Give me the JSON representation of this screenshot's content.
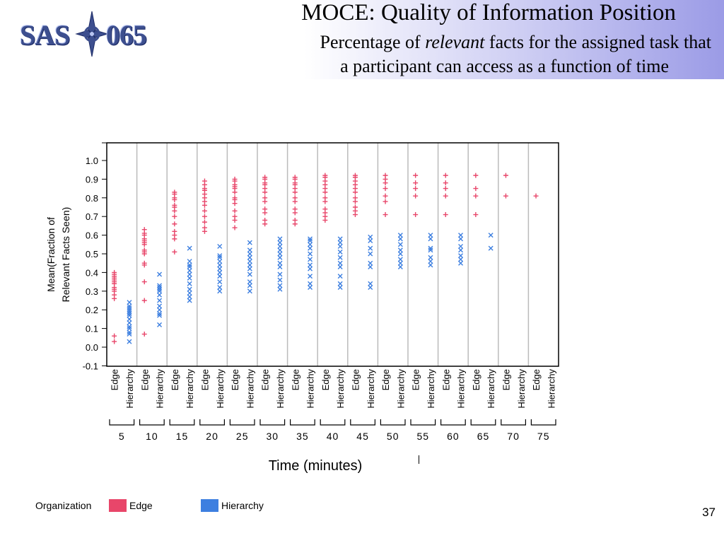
{
  "slide": {
    "logo_text_left": "SAS",
    "logo_text_right": "065",
    "title": "MOCE: Quality of Information Position",
    "subtitle_pre": "Percentage of ",
    "subtitle_em": "relevant",
    "subtitle_post": " facts for the assigned task that",
    "subtitle_line2": "a participant can access as a function of time",
    "page_number": "37"
  },
  "legend": {
    "title": "Organization",
    "items": [
      {
        "label": "Edge",
        "color": "#e8466a"
      },
      {
        "label": "Hierarchy",
        "color": "#3d7fe0"
      }
    ]
  },
  "chart_data": {
    "type": "scatter",
    "xlabel": "Time (minutes)",
    "ylabel_line1": "Mean(Fraction of",
    "ylabel_line2": "Relevant Facts Seen)",
    "ylim": [
      -0.1,
      1.1
    ],
    "yticks": [
      -0.1,
      0.0,
      0.1,
      0.2,
      0.3,
      0.4,
      0.5,
      0.6,
      0.7,
      0.8,
      0.9,
      1.0
    ],
    "ytick_labels": [
      "-0.1",
      "0.0",
      "0.1",
      "0.2",
      "0.3",
      "0.4",
      "0.5",
      "0.6",
      "0.7",
      "0.8",
      "0.9",
      "1.0"
    ],
    "groups": [
      "5",
      "10",
      "15",
      "20",
      "25",
      "30",
      "35",
      "40",
      "45",
      "50",
      "55",
      "60",
      "65",
      "70",
      "75"
    ],
    "subgroups": [
      "Edge",
      "Hierarchy"
    ],
    "grid": true,
    "series": [
      {
        "name": "Edge",
        "marker": "+",
        "color": "#e8466a",
        "values": [
          [
            0.03,
            0.06,
            0.26,
            0.28,
            0.3,
            0.31,
            0.32,
            0.34,
            0.35,
            0.36,
            0.37,
            0.38,
            0.39,
            0.4
          ],
          [
            0.07,
            0.25,
            0.35,
            0.44,
            0.45,
            0.5,
            0.51,
            0.52,
            0.55,
            0.56,
            0.57,
            0.58,
            0.6,
            0.61,
            0.63
          ],
          [
            0.51,
            0.58,
            0.6,
            0.62,
            0.66,
            0.7,
            0.73,
            0.75,
            0.76,
            0.79,
            0.8,
            0.82,
            0.83
          ],
          [
            0.62,
            0.64,
            0.67,
            0.7,
            0.73,
            0.76,
            0.78,
            0.8,
            0.82,
            0.84,
            0.85,
            0.87,
            0.89
          ],
          [
            0.64,
            0.68,
            0.7,
            0.73,
            0.77,
            0.79,
            0.8,
            0.83,
            0.85,
            0.86,
            0.87,
            0.89,
            0.9
          ],
          [
            0.66,
            0.68,
            0.72,
            0.74,
            0.78,
            0.8,
            0.83,
            0.85,
            0.87,
            0.88,
            0.9,
            0.91
          ],
          [
            0.66,
            0.68,
            0.72,
            0.74,
            0.78,
            0.8,
            0.83,
            0.85,
            0.87,
            0.88,
            0.9,
            0.91
          ],
          [
            0.68,
            0.7,
            0.72,
            0.74,
            0.78,
            0.8,
            0.83,
            0.85,
            0.87,
            0.89,
            0.91,
            0.92
          ],
          [
            0.71,
            0.73,
            0.75,
            0.78,
            0.8,
            0.83,
            0.85,
            0.87,
            0.89,
            0.91,
            0.92
          ],
          [
            0.71,
            0.78,
            0.81,
            0.85,
            0.88,
            0.9,
            0.92
          ],
          [
            0.71,
            0.81,
            0.85,
            0.88,
            0.92
          ],
          [
            0.71,
            0.81,
            0.85,
            0.88,
            0.92
          ],
          [
            0.71,
            0.81,
            0.85,
            0.92
          ],
          [
            0.81,
            0.92
          ],
          [
            0.81
          ]
        ]
      },
      {
        "name": "Hierarchy",
        "marker": "x",
        "color": "#3d7fe0",
        "values": [
          [
            0.03,
            0.07,
            0.08,
            0.1,
            0.11,
            0.13,
            0.15,
            0.17,
            0.18,
            0.19,
            0.2,
            0.21,
            0.22,
            0.24
          ],
          [
            0.12,
            0.17,
            0.18,
            0.2,
            0.22,
            0.25,
            0.28,
            0.3,
            0.31,
            0.32,
            0.33,
            0.39
          ],
          [
            0.25,
            0.27,
            0.29,
            0.31,
            0.34,
            0.37,
            0.39,
            0.41,
            0.43,
            0.44,
            0.46,
            0.53
          ],
          [
            0.3,
            0.32,
            0.35,
            0.38,
            0.4,
            0.42,
            0.44,
            0.46,
            0.48,
            0.49,
            0.54
          ],
          [
            0.3,
            0.33,
            0.35,
            0.39,
            0.42,
            0.44,
            0.46,
            0.48,
            0.5,
            0.52,
            0.56
          ],
          [
            0.31,
            0.33,
            0.36,
            0.39,
            0.43,
            0.45,
            0.48,
            0.5,
            0.52,
            0.54,
            0.56,
            0.58
          ],
          [
            0.32,
            0.34,
            0.38,
            0.42,
            0.44,
            0.47,
            0.5,
            0.53,
            0.55,
            0.57,
            0.58
          ],
          [
            0.32,
            0.34,
            0.38,
            0.43,
            0.45,
            0.48,
            0.51,
            0.54,
            0.56,
            0.58
          ],
          [
            0.32,
            0.34,
            0.43,
            0.45,
            0.5,
            0.53,
            0.57,
            0.59
          ],
          [
            0.43,
            0.45,
            0.47,
            0.5,
            0.52,
            0.55,
            0.58,
            0.6
          ],
          [
            0.44,
            0.46,
            0.48,
            0.52,
            0.53,
            0.58,
            0.6
          ],
          [
            0.45,
            0.47,
            0.49,
            0.52,
            0.54,
            0.58,
            0.6
          ],
          [
            0.53,
            0.6
          ],
          [],
          []
        ]
      }
    ]
  }
}
